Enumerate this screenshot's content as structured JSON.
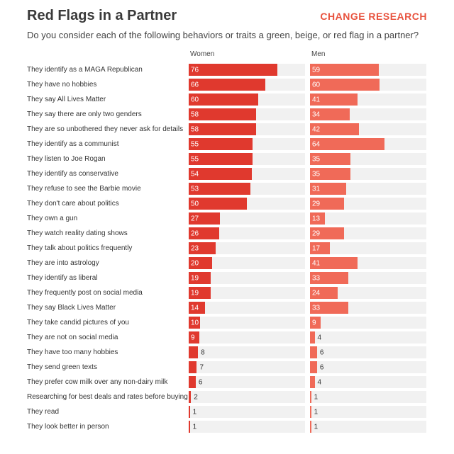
{
  "chart_data": {
    "type": "bar",
    "title": "Red Flags in a Partner",
    "logo": "CHANGE RESEARCH",
    "subtitle": "Do you consider each of the following behaviors or traits a green, beige, or red flag in a partner?",
    "categories": [
      "They identify as a MAGA Republican",
      "They have no hobbies",
      "They say All Lives Matter",
      "They say there are only two genders",
      "They are so unbothered they never ask for details",
      "They identify as a communist",
      "They listen to Joe Rogan",
      "They identify as conservative",
      "They refuse to see the Barbie movie",
      "They don't care about politics",
      "They own a gun",
      "They watch reality dating shows",
      "They talk about politics frequently",
      "They are into astrology",
      "They identify as liberal",
      "They frequently post on social media",
      "They say Black Lives Matter",
      "They take candid pictures of you",
      "They are not on social media",
      "They have too many hobbies",
      "They send green texts",
      "They prefer cow milk over any non-dairy milk",
      "Researching for best deals and rates before buying",
      "They read",
      "They look better in person"
    ],
    "series": [
      {
        "name": "Women",
        "color": "#e0392e",
        "values": [
          76,
          66,
          60,
          58,
          58,
          55,
          55,
          54,
          53,
          50,
          27,
          26,
          23,
          20,
          19,
          19,
          14,
          10,
          9,
          8,
          7,
          6,
          2,
          1,
          1
        ]
      },
      {
        "name": "Men",
        "color": "#f06a58",
        "values": [
          59,
          60,
          41,
          34,
          42,
          64,
          35,
          35,
          31,
          29,
          13,
          29,
          17,
          41,
          33,
          24,
          33,
          9,
          4,
          6,
          6,
          4,
          1,
          1,
          1
        ]
      }
    ],
    "xlim": [
      0,
      100
    ]
  }
}
